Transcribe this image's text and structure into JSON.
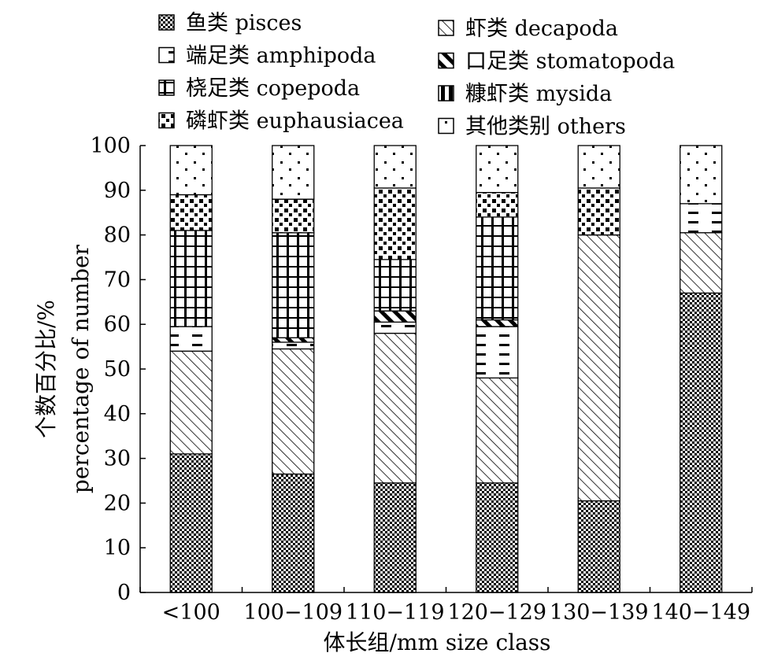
{
  "chart_data": {
    "type": "bar",
    "stacked": true,
    "categories": [
      "<100",
      "100−109",
      "110−119",
      "120−129",
      "130−139",
      "140−149"
    ],
    "xlabel": "体长组/mm size class",
    "ylabel_cn": "个数百分比/%",
    "ylabel_en": "percentage of number",
    "ylim": [
      0,
      100
    ],
    "yticks": [
      0,
      10,
      20,
      30,
      40,
      50,
      60,
      70,
      80,
      90,
      100
    ],
    "grid": false,
    "legend_position": "top",
    "series": [
      {
        "name": "鱼类 pisces",
        "pattern": "checker",
        "values": [
          31,
          26.5,
          24.5,
          24.5,
          20.5,
          67
        ]
      },
      {
        "name": "虾类 decapoda",
        "pattern": "diagonal",
        "values": [
          23,
          28,
          33.5,
          23.5,
          59.5,
          13.5
        ]
      },
      {
        "name": "端足类 amphipoda",
        "pattern": "dash",
        "values": [
          5.5,
          1.5,
          2.5,
          11.5,
          0,
          6.5
        ]
      },
      {
        "name": "口足类 stomatopoda",
        "pattern": "diagstrip",
        "values": [
          0,
          1,
          2.5,
          1.5,
          0,
          0
        ]
      },
      {
        "name": "桡足类 copepoda",
        "pattern": "grid",
        "values": [
          21.5,
          23.5,
          11.5,
          23,
          0,
          0
        ]
      },
      {
        "name": "糠虾类 mysida",
        "pattern": "half",
        "values": [
          0,
          0,
          0,
          0,
          0,
          0
        ]
      },
      {
        "name": "磷虾类 euphausiacea",
        "pattern": "blocks",
        "values": [
          8,
          7.5,
          16,
          5.5,
          10.5,
          0
        ]
      },
      {
        "name": "其他类别 others",
        "pattern": "dots",
        "values": [
          11,
          12,
          9.5,
          10.5,
          9.5,
          13
        ]
      }
    ],
    "legend": {
      "left": [
        "鱼类 pisces",
        "端足类 amphipoda",
        "桡足类 copepoda",
        "磷虾类 euphausiacea"
      ],
      "right": [
        "虾类 decapoda",
        "口足类 stomatopoda",
        "糠虾类 mysida",
        "其他类别 others"
      ]
    }
  }
}
